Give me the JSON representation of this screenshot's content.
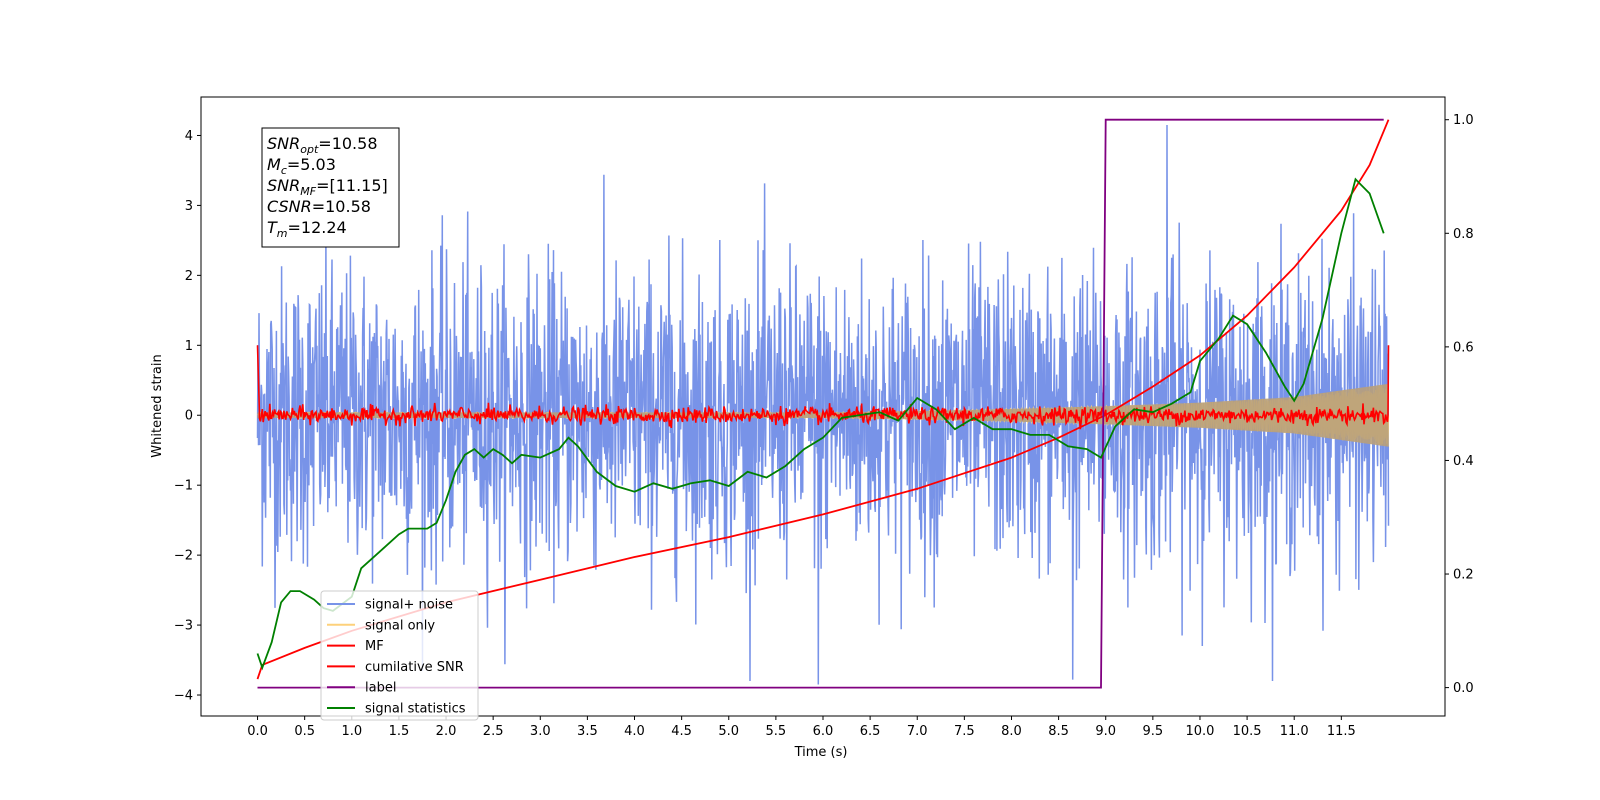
{
  "chart_data": {
    "type": "line",
    "xlabel": "Time (s)",
    "ylabel": "Whitened strain",
    "xlim": [
      -0.6,
      12.6
    ],
    "ylim_left": [
      -4.3,
      4.55
    ],
    "ylim_right": [
      -0.05,
      1.04
    ],
    "x_ticks": [
      0.0,
      0.5,
      1.0,
      1.5,
      2.0,
      2.5,
      3.0,
      3.5,
      4.0,
      4.5,
      5.0,
      5.5,
      6.0,
      6.5,
      7.0,
      7.5,
      8.0,
      8.5,
      9.0,
      9.5,
      10.0,
      10.5,
      11.0,
      11.5
    ],
    "x_tick_labels": [
      "0.0",
      "0.5",
      "1.0",
      "1.5",
      "2.0",
      "2.5",
      "3.0",
      "3.5",
      "4.0",
      "4.5",
      "5.0",
      "5.5",
      "6.0",
      "6.5",
      "7.0",
      "7.5",
      "8.0",
      "8.5",
      "9.0",
      "9.5",
      "10.0",
      "10.5",
      "11.0",
      "11.5"
    ],
    "y_left_ticks": [
      4,
      3,
      2,
      1,
      0,
      -1,
      -2,
      -3,
      -4
    ],
    "y_left_tick_labels": [
      "4",
      "3",
      "2",
      "1",
      "0",
      "−1",
      "−2",
      "−3",
      "−4"
    ],
    "y_right_ticks": [
      1.0,
      0.8,
      0.6,
      0.4,
      0.2,
      0.0
    ],
    "y_right_tick_labels": [
      "1.0",
      "0.8",
      "0.6",
      "0.4",
      "0.2",
      "0.0"
    ],
    "grid": false,
    "legend_position": "lower-left",
    "info_box": {
      "lines": [
        {
          "sym": "SNR",
          "sub": "opt",
          "text": "=10.58"
        },
        {
          "sym": "M",
          "sub": "c",
          "text": "=5.03"
        },
        {
          "sym": "SNR",
          "sub": "MF",
          "text": "=[11.15]"
        },
        {
          "sym": "CSNR",
          "sub": "",
          "text": "=10.58"
        },
        {
          "sym": "T",
          "sub": "m",
          "text": "=12.24"
        }
      ]
    },
    "series": [
      {
        "name": "signal+ noise",
        "color": "#7893e8",
        "axis": "left",
        "kind": "noise",
        "t_range": [
          0.0,
          12.0
        ],
        "extremes": {
          "max": 4.15,
          "min": -3.85
        }
      },
      {
        "name": "signal only",
        "color": "#fdd17b",
        "axis": "left",
        "kind": "envelope",
        "t": [
          0.0,
          6.0,
          7.0,
          8.0,
          9.0,
          10.0,
          11.0,
          12.0
        ],
        "amplitude": [
          0.04,
          0.04,
          0.06,
          0.09,
          0.13,
          0.18,
          0.26,
          0.45
        ]
      },
      {
        "name": "MF",
        "color": "#ff0000",
        "axis": "left",
        "kind": "noise-small",
        "t_range": [
          0.0,
          12.0
        ],
        "start_value": 1.0,
        "end_value": 1.0
      },
      {
        "name": "cumilative SNR",
        "color": "#ff0000",
        "axis": "right",
        "x": [
          0.0,
          0.05,
          0.5,
          1.0,
          2.0,
          3.0,
          4.0,
          5.0,
          6.0,
          7.0,
          8.0,
          8.5,
          9.0,
          9.5,
          10.0,
          10.5,
          11.0,
          11.5,
          11.8,
          12.0
        ],
        "y": [
          0.015,
          0.04,
          0.07,
          0.1,
          0.15,
          0.19,
          0.23,
          0.265,
          0.305,
          0.35,
          0.405,
          0.44,
          0.48,
          0.53,
          0.585,
          0.655,
          0.74,
          0.84,
          0.92,
          1.0
        ]
      },
      {
        "name": "label",
        "color": "#800080",
        "axis": "right",
        "x": [
          0.0,
          8.95,
          9.0,
          11.95
        ],
        "y": [
          0.0,
          0.0,
          1.0,
          1.0
        ]
      },
      {
        "name": "signal statistics",
        "color": "#008000",
        "axis": "right",
        "x": [
          0.0,
          0.05,
          0.15,
          0.25,
          0.35,
          0.45,
          0.6,
          0.7,
          0.8,
          1.0,
          1.1,
          1.3,
          1.5,
          1.6,
          1.7,
          1.8,
          1.9,
          2.0,
          2.1,
          2.2,
          2.3,
          2.4,
          2.5,
          2.6,
          2.7,
          2.8,
          3.0,
          3.2,
          3.3,
          3.4,
          3.6,
          3.8,
          4.0,
          4.2,
          4.4,
          4.6,
          4.8,
          5.0,
          5.2,
          5.4,
          5.6,
          5.8,
          6.0,
          6.2,
          6.4,
          6.6,
          6.8,
          7.0,
          7.2,
          7.4,
          7.6,
          7.8,
          8.0,
          8.2,
          8.4,
          8.6,
          8.8,
          8.95,
          9.1,
          9.3,
          9.5,
          9.7,
          9.9,
          10.0,
          10.2,
          10.35,
          10.5,
          10.7,
          10.9,
          11.0,
          11.1,
          11.3,
          11.5,
          11.65,
          11.8,
          11.95
        ],
        "y": [
          0.06,
          0.035,
          0.08,
          0.15,
          0.17,
          0.17,
          0.155,
          0.14,
          0.135,
          0.16,
          0.21,
          0.24,
          0.27,
          0.28,
          0.28,
          0.28,
          0.29,
          0.33,
          0.38,
          0.41,
          0.42,
          0.405,
          0.42,
          0.41,
          0.395,
          0.41,
          0.405,
          0.42,
          0.44,
          0.425,
          0.38,
          0.355,
          0.345,
          0.36,
          0.35,
          0.36,
          0.365,
          0.355,
          0.38,
          0.37,
          0.39,
          0.42,
          0.44,
          0.475,
          0.48,
          0.485,
          0.47,
          0.51,
          0.49,
          0.455,
          0.475,
          0.455,
          0.455,
          0.445,
          0.445,
          0.425,
          0.42,
          0.405,
          0.46,
          0.49,
          0.485,
          0.5,
          0.52,
          0.575,
          0.615,
          0.655,
          0.64,
          0.59,
          0.53,
          0.505,
          0.535,
          0.65,
          0.8,
          0.895,
          0.87,
          0.8
        ]
      }
    ]
  }
}
